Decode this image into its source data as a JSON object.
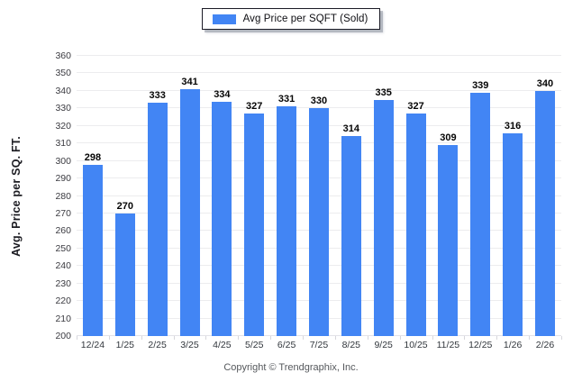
{
  "legend": {
    "label": "Avg Price per SQFT (Sold)"
  },
  "footer": {
    "copyright": "Copyright © Trendgraphix, Inc."
  },
  "chart_data": {
    "type": "bar",
    "title": "",
    "series_name": "Avg Price per SQFT (Sold)",
    "categories": [
      "12/24",
      "1/25",
      "2/25",
      "3/25",
      "4/25",
      "5/25",
      "6/25",
      "7/25",
      "8/25",
      "9/25",
      "10/25",
      "11/25",
      "12/25",
      "1/26",
      "2/26"
    ],
    "values": [
      298,
      270,
      333,
      341,
      334,
      327,
      331,
      330,
      314,
      335,
      327,
      309,
      339,
      316,
      340
    ],
    "xlabel": "",
    "ylabel": "Avg. Price per SQ. FT.",
    "ylim": [
      200,
      360
    ],
    "ytick_step": 10,
    "grid": true,
    "data_labels": true,
    "legend_position": "top-center",
    "bar_color": "#4285f4",
    "gridline_color": "#ececee",
    "background_color": "#ffffff"
  }
}
